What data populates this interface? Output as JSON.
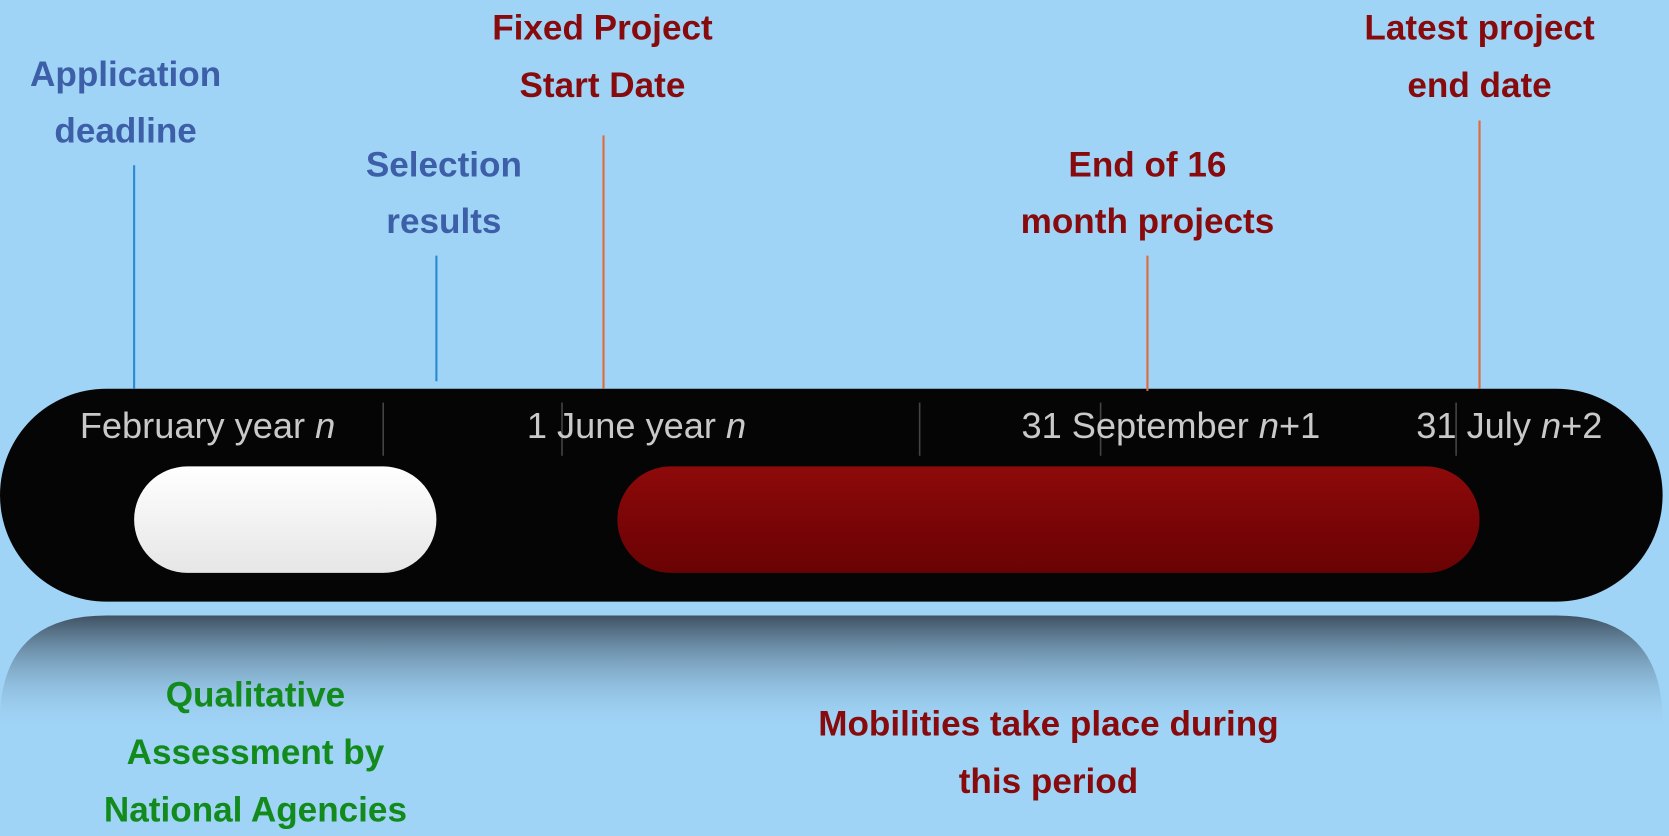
{
  "milestones_top": [
    {
      "lines": [
        "Application",
        "deadline"
      ]
    },
    {
      "lines": [
        "Selection",
        "results"
      ]
    },
    {
      "lines": [
        "Fixed Project",
        "Start Date"
      ]
    },
    {
      "lines": [
        "End of 16",
        "month projects"
      ]
    },
    {
      "lines": [
        "Latest project",
        "end date"
      ]
    }
  ],
  "dates": [
    {
      "before": "February year ",
      "italic": "n"
    },
    {
      "before": "1 June year ",
      "italic": "n"
    },
    {
      "before": "31 September ",
      "italic": "n",
      "after": "+1"
    },
    {
      "before": "31 July ",
      "italic": "n",
      "after": "+2"
    }
  ],
  "periods": [
    {
      "lines": [
        "Qualitative",
        "Assessment by",
        "National Agencies"
      ]
    },
    {
      "lines": [
        "Mobilities take place during",
        "this period"
      ]
    }
  ]
}
